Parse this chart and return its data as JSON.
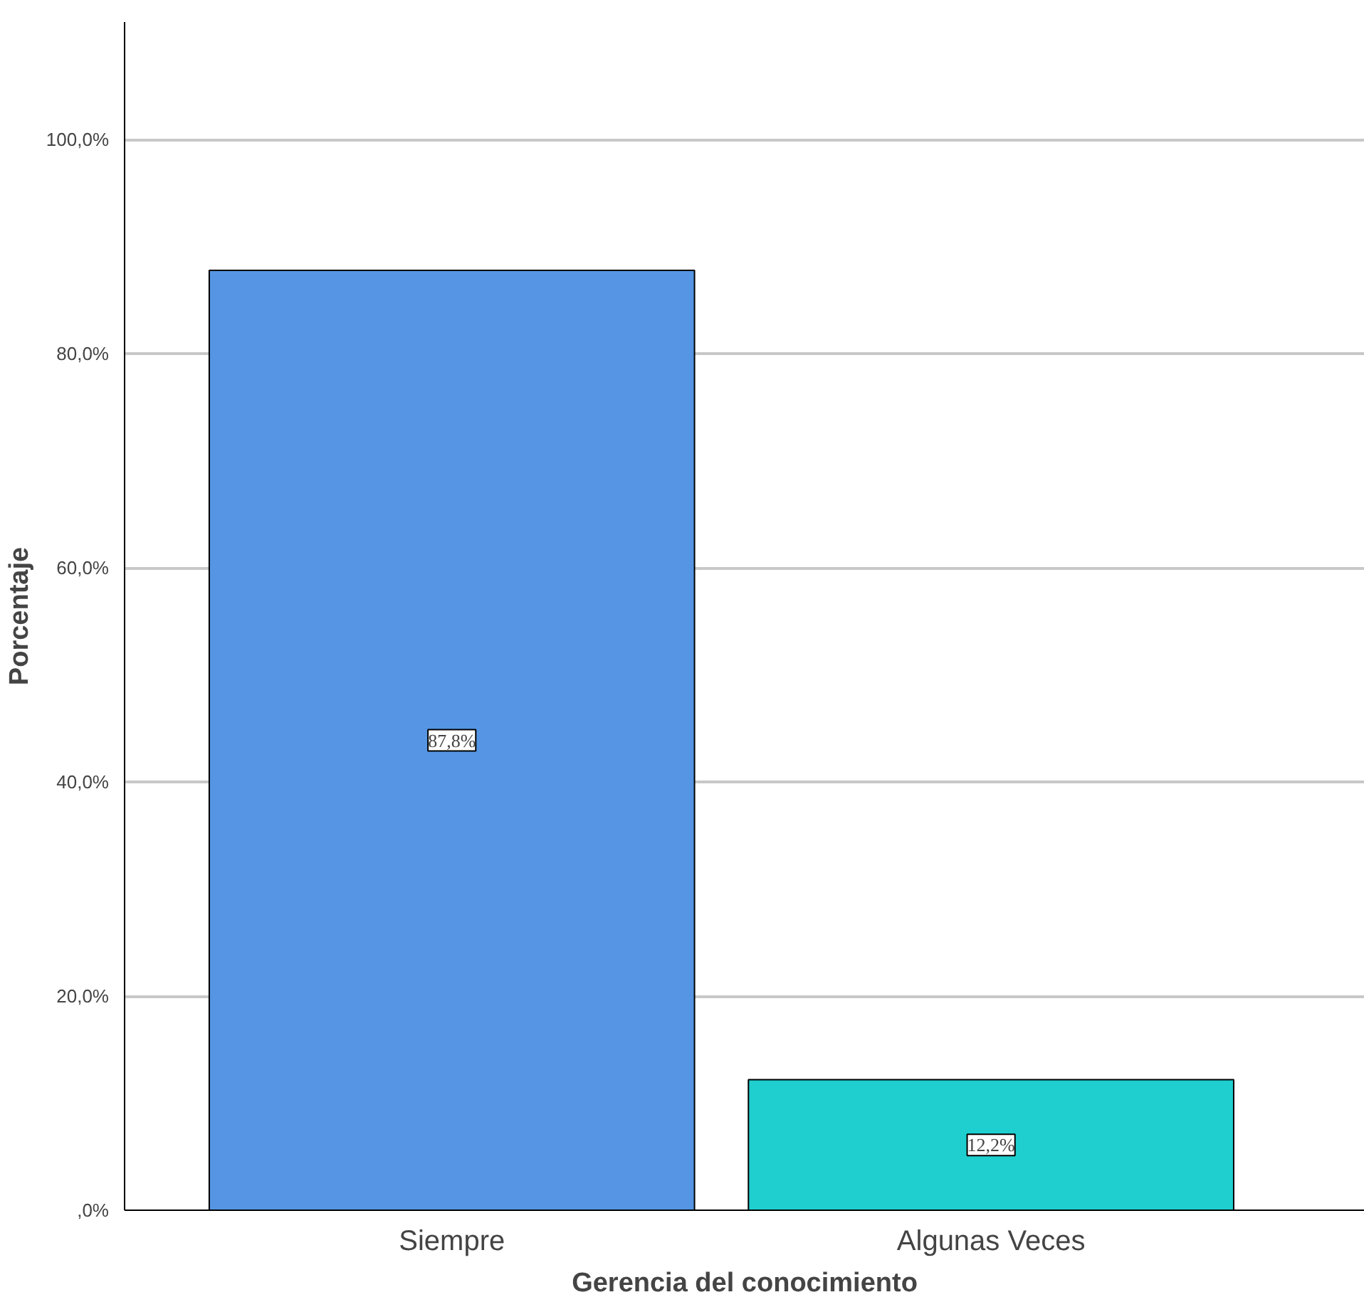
{
  "chart_data": {
    "type": "bar",
    "xlabel": "Gerencia del conocimiento",
    "ylabel": "Porcentaje",
    "categories": [
      "Siempre",
      "Algunas Veces"
    ],
    "values": [
      87.8,
      12.2
    ],
    "colors": [
      "#5595e3",
      "#1fcfcf"
    ],
    "value_labels": [
      "87,8%",
      "12,2%"
    ],
    "ylim": [
      0,
      111
    ],
    "yticks": [
      {
        "value": 0,
        "label": ",0%"
      },
      {
        "value": 20,
        "label": "20,0%"
      },
      {
        "value": 40,
        "label": "40,0%"
      },
      {
        "value": 60,
        "label": "60,0%"
      },
      {
        "value": 80,
        "label": "80,0%"
      },
      {
        "value": 100,
        "label": "100,0%"
      }
    ],
    "grid": "y"
  }
}
